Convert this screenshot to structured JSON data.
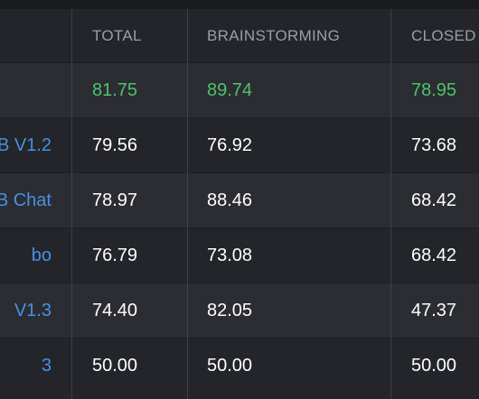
{
  "table": {
    "columns": [
      "TOTAL",
      "BRAINSTORMING",
      "CLOSED"
    ],
    "rows": [
      {
        "model": "",
        "total": "81.75",
        "brainstorming": "89.74",
        "closed": "78.95"
      },
      {
        "model": "B V1.2",
        "total": "79.56",
        "brainstorming": "76.92",
        "closed": "73.68"
      },
      {
        "model": "B Chat",
        "total": "78.97",
        "brainstorming": "88.46",
        "closed": "68.42"
      },
      {
        "model": "bo",
        "total": "76.79",
        "brainstorming": "73.08",
        "closed": "68.42"
      },
      {
        "model": "V1.3",
        "total": "74.40",
        "brainstorming": "82.05",
        "closed": "47.37"
      },
      {
        "model": "3",
        "total": "50.00",
        "brainstorming": "50.00",
        "closed": "50.00"
      }
    ]
  },
  "colors": {
    "background": "#23252a",
    "row_alt": "#2b2d32",
    "header_text": "#9a9ea6",
    "model_link": "#4a90e2",
    "highlight_green": "#4fc26b",
    "value_text": "#ffffff",
    "divider": "#3e4147"
  }
}
